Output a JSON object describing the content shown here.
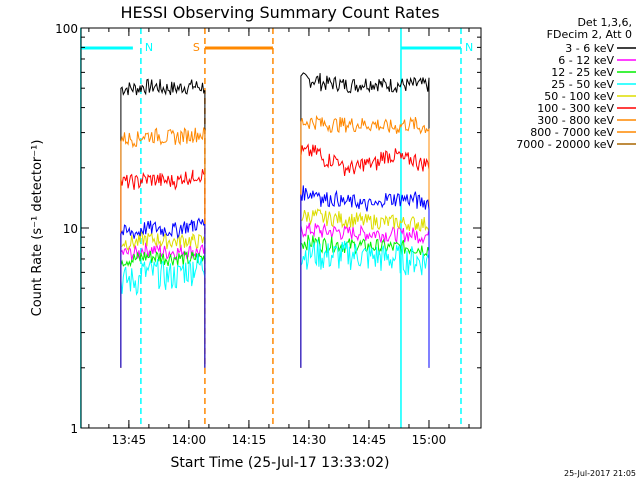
{
  "chart_data": {
    "type": "line",
    "title": "HESSI Observing Summary Count Rates",
    "xlabel": "Start Time (25-Jul-17 13:33:02)",
    "ylabel": "Count Rate (s⁻¹ detector⁻¹)",
    "yscale": "log",
    "ylim": [
      1,
      100
    ],
    "xlim": [
      "13:33:02",
      "15:13"
    ],
    "x_ticks": [
      "13:45",
      "14:00",
      "14:15",
      "14:30",
      "14:45",
      "15:00"
    ],
    "y_ticks": [
      "1",
      "10",
      "100"
    ],
    "grid": false,
    "legend_position": "top-right",
    "legend_header": [
      "Det 1,3,6,",
      "FDecim 2, Att 0"
    ],
    "timestamp": "25-Jul-2017 21:05",
    "annotations": [
      {
        "label": "N",
        "color": "#00ffff",
        "interval": [
          "13:33",
          "13:48"
        ],
        "edge_lines": [
          "13:33",
          "13:48"
        ]
      },
      {
        "label": "S",
        "color": "#ff8800",
        "interval": [
          "14:04",
          "14:21"
        ],
        "edge_lines": [
          "14:04",
          "14:21"
        ]
      },
      {
        "label": "N",
        "color": "#00ffff",
        "interval": [
          "14:53",
          "15:08"
        ],
        "edge_lines": [
          "14:53",
          "15:08"
        ]
      }
    ],
    "x": [
      "13:43",
      "13:48",
      "13:53",
      "13:58",
      "14:01",
      "14:23",
      "14:28",
      "14:33",
      "14:38",
      "14:43",
      "14:48",
      "14:53",
      "14:57"
    ],
    "series": [
      {
        "name": "3 - 6 keV",
        "color": "#000000",
        "values": [
          50,
          51,
          50,
          51,
          51,
          null,
          55,
          53,
          52,
          53,
          52,
          52,
          52
        ]
      },
      {
        "name": "6 - 12 keV",
        "color": "#ff00ff",
        "values": [
          7.5,
          7.8,
          7.6,
          7.7,
          7.6,
          null,
          9.8,
          9.6,
          9.5,
          9.4,
          9.3,
          9.3,
          9.2
        ]
      },
      {
        "name": "12 - 25 keV",
        "color": "#00ee00",
        "values": [
          7.0,
          7.2,
          7.1,
          7.0,
          7.1,
          null,
          8.5,
          8.3,
          8.2,
          8.1,
          8.0,
          8.0,
          7.9
        ]
      },
      {
        "name": "25 - 50 keV",
        "color": "#00ffff",
        "values": [
          5.5,
          6.0,
          5.8,
          6.2,
          6.5,
          null,
          7.5,
          7.3,
          7.4,
          7.2,
          7.1,
          7.0,
          6.9
        ]
      },
      {
        "name": "50 - 100 keV",
        "color": "#dddd00",
        "values": [
          8.5,
          8.8,
          8.6,
          8.7,
          8.6,
          null,
          11.5,
          11.2,
          11.0,
          10.8,
          10.7,
          10.6,
          10.5
        ]
      },
      {
        "name": "100 - 300 keV",
        "color": "#ff0000",
        "values": [
          17,
          17.5,
          17.2,
          18,
          18.5,
          null,
          24,
          22,
          20,
          21,
          23,
          22,
          21
        ]
      },
      {
        "name": "300 - 800 keV",
        "color": "#ff8800",
        "values": [
          28,
          29,
          28.5,
          29,
          29.5,
          null,
          34,
          33,
          33,
          33,
          32,
          33,
          32
        ]
      },
      {
        "name": "800 - 7000 keV",
        "color": "#ff8800",
        "values": [
          null,
          null,
          null,
          null,
          null,
          null,
          null,
          null,
          null,
          null,
          null,
          null,
          null
        ]
      },
      {
        "name": "7000 - 20000 keV",
        "color": "#aa6600",
        "values": [
          null,
          null,
          null,
          null,
          null,
          null,
          null,
          null,
          null,
          null,
          null,
          null,
          null
        ]
      },
      {
        "name": "",
        "color": "#0000ff",
        "values": [
          9.5,
          10.0,
          9.8,
          10.2,
          10.5,
          null,
          15,
          14,
          13.5,
          13,
          14,
          14,
          13.5
        ]
      }
    ]
  }
}
